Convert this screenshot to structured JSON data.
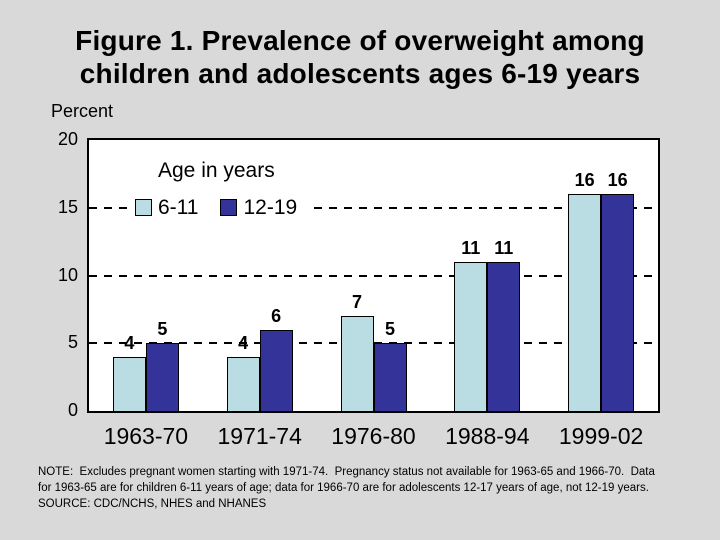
{
  "slide": {
    "background_color": "#d9d9d9",
    "title_line1": "Figure 1. Prevalence of overweight among",
    "title_line2": "children and adolescents ages 6-19 years"
  },
  "chart_data": {
    "type": "bar",
    "title": "Figure 1. Prevalence of overweight among children and adolescents ages 6-19 years",
    "xlabel": "",
    "ylabel": "Percent",
    "ylim": [
      0,
      20
    ],
    "yticks": [
      0,
      5,
      10,
      15,
      20
    ],
    "gridlines": [
      5,
      10,
      15
    ],
    "grid_style": "dashed-horizontal",
    "categories": [
      "1963-70",
      "1971-74",
      "1976-80",
      "1988-94",
      "1999-02"
    ],
    "series": [
      {
        "name": "6-11",
        "color": "#b9dde3",
        "values": [
          4,
          4,
          7,
          11,
          16
        ]
      },
      {
        "name": "12-19",
        "color": "#333399",
        "values": [
          5,
          6,
          5,
          11,
          16
        ]
      }
    ],
    "legend_title": "Age in years",
    "legend_position": "top-left-inside",
    "plot_background": "#ffffff",
    "bar_border_color": "#000000"
  },
  "footnote": {
    "line1": "NOTE:  Excludes pregnant women starting with 1971-74.  Pregnancy status not available for 1963-65 and 1966-70.  Data",
    "line2": "for 1963-65 are for children 6-11 years of age; data for 1966-70 are for adolescents 12-17 years of age, not 12-19 years.",
    "line3": "SOURCE: CDC/NCHS, NHES and NHANES"
  }
}
